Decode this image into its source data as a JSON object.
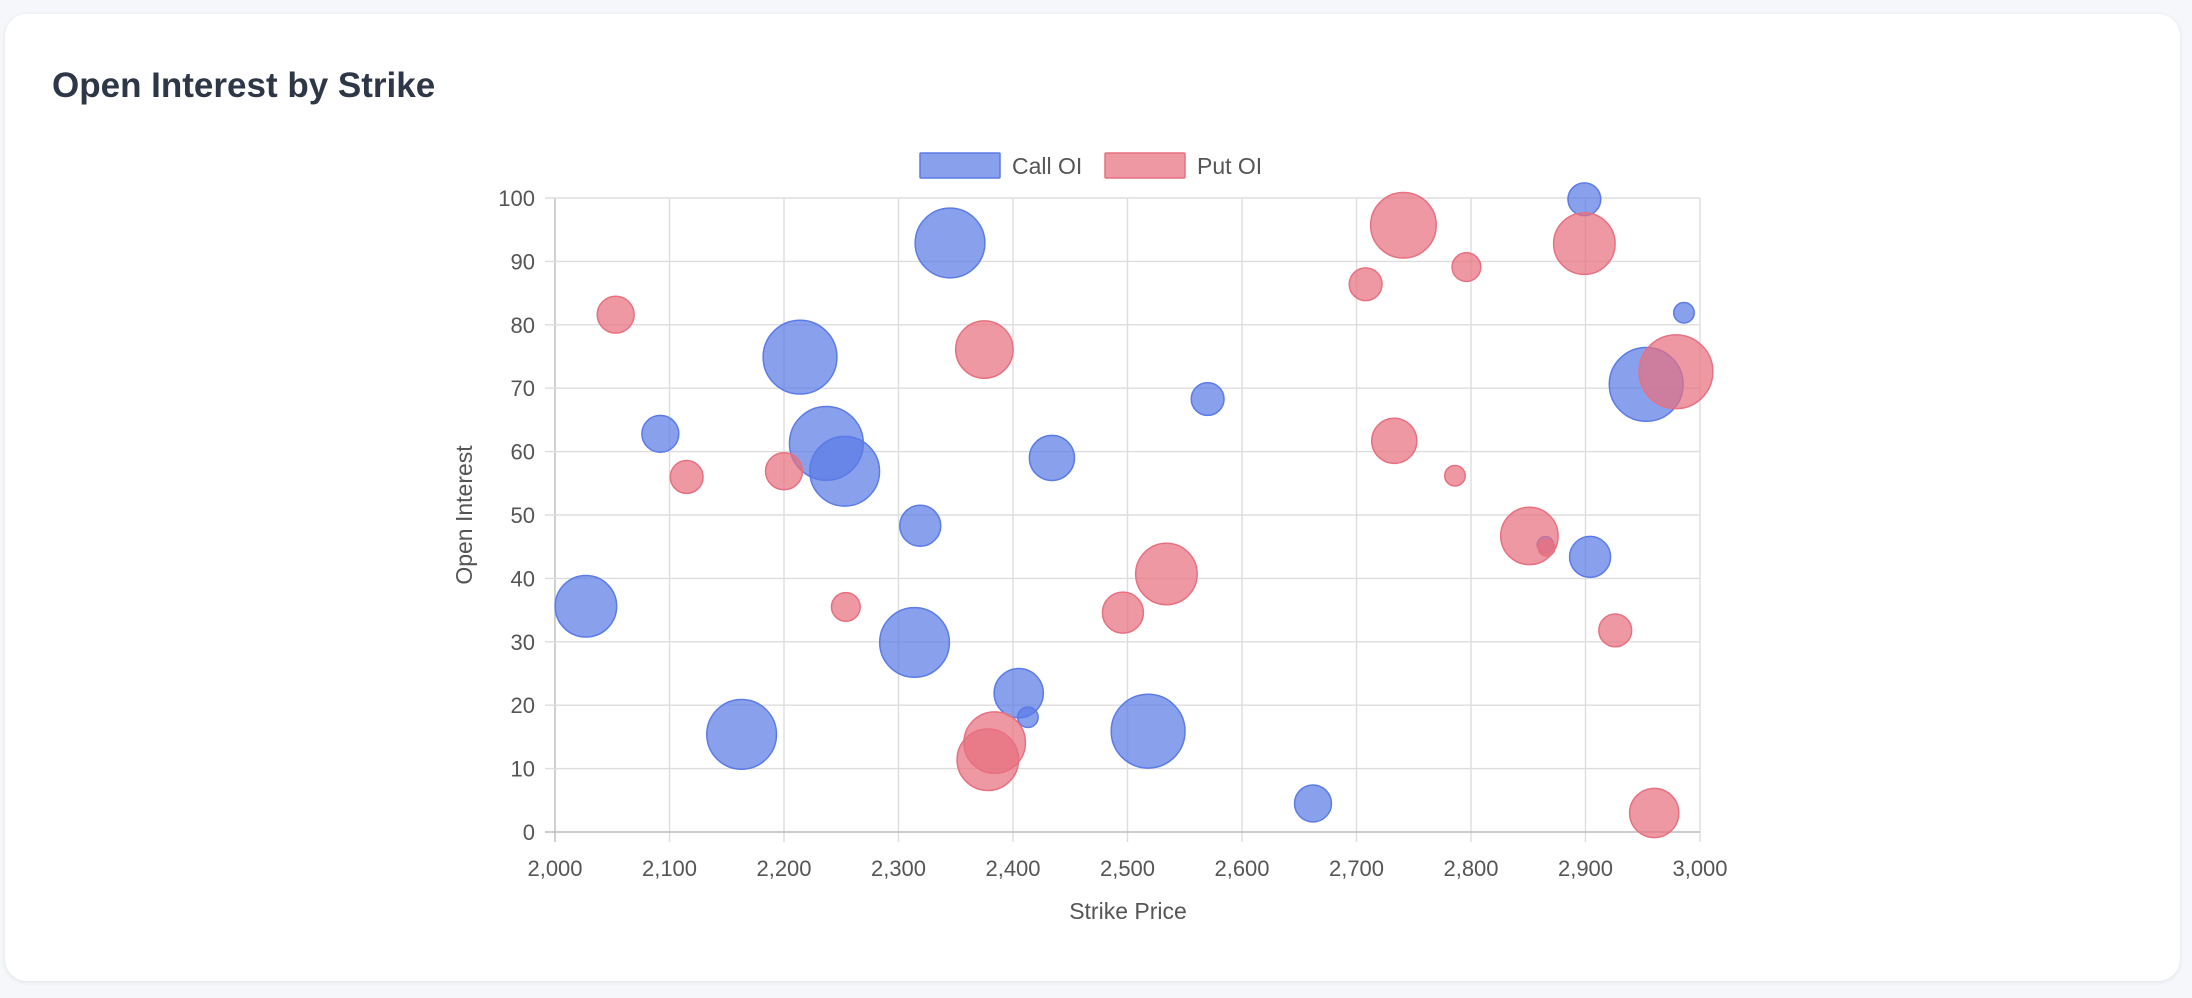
{
  "card": {
    "title": "Open Interest by Strike"
  },
  "colors": {
    "call_fill": "rgba(91, 123, 230, 0.72)",
    "call_stroke": "#5b7be6",
    "put_fill": "rgba(232, 112, 128, 0.72)",
    "put_stroke": "#e87080",
    "grid": "#dddddd",
    "axis": "#bbbbbb"
  },
  "chart_data": {
    "type": "bubble",
    "title": "Open Interest by Strike",
    "xlabel": "Strike Price",
    "ylabel": "Open Interest",
    "xlim": [
      2000,
      3000
    ],
    "ylim": [
      0,
      100
    ],
    "x_ticks": [
      "2,000",
      "2,100",
      "2,200",
      "2,300",
      "2,400",
      "2,500",
      "2,600",
      "2,700",
      "2,800",
      "2,900",
      "3,000"
    ],
    "y_ticks": [
      "0",
      "10",
      "20",
      "30",
      "40",
      "50",
      "60",
      "70",
      "80",
      "90",
      "100"
    ],
    "grid": true,
    "legend_position": "top-center",
    "legend": [
      "Call OI",
      "Put OI"
    ],
    "series": [
      {
        "name": "Call OI",
        "points": [
          {
            "x": 2027,
            "y": 35.6,
            "r": 15
          },
          {
            "x": 2092,
            "y": 62.8,
            "r": 9
          },
          {
            "x": 2163,
            "y": 15.4,
            "r": 17
          },
          {
            "x": 2214,
            "y": 74.9,
            "r": 18
          },
          {
            "x": 2237,
            "y": 61.3,
            "r": 18
          },
          {
            "x": 2253,
            "y": 56.9,
            "r": 17
          },
          {
            "x": 2314,
            "y": 29.9,
            "r": 17
          },
          {
            "x": 2319,
            "y": 48.3,
            "r": 10
          },
          {
            "x": 2345,
            "y": 92.9,
            "r": 17
          },
          {
            "x": 2405,
            "y": 21.9,
            "r": 12
          },
          {
            "x": 2413,
            "y": 18.1,
            "r": 5
          },
          {
            "x": 2434,
            "y": 59.0,
            "r": 11
          },
          {
            "x": 2518,
            "y": 15.9,
            "r": 18
          },
          {
            "x": 2570,
            "y": 68.3,
            "r": 8
          },
          {
            "x": 2662,
            "y": 4.5,
            "r": 9
          },
          {
            "x": 2865,
            "y": 45.3,
            "r": 4
          },
          {
            "x": 2899,
            "y": 99.8,
            "r": 8
          },
          {
            "x": 2904,
            "y": 43.4,
            "r": 10
          },
          {
            "x": 2953,
            "y": 70.6,
            "r": 18
          },
          {
            "x": 2986,
            "y": 81.9,
            "r": 5
          }
        ]
      },
      {
        "name": "Put OI",
        "points": [
          {
            "x": 2053,
            "y": 81.6,
            "r": 9
          },
          {
            "x": 2115,
            "y": 56.0,
            "r": 8
          },
          {
            "x": 2200,
            "y": 56.9,
            "r": 9
          },
          {
            "x": 2254,
            "y": 35.5,
            "r": 7
          },
          {
            "x": 2375,
            "y": 76.1,
            "r": 14
          },
          {
            "x": 2378,
            "y": 11.4,
            "r": 15
          },
          {
            "x": 2384,
            "y": 14.1,
            "r": 15
          },
          {
            "x": 2496,
            "y": 34.6,
            "r": 10
          },
          {
            "x": 2534,
            "y": 40.7,
            "r": 15
          },
          {
            "x": 2708,
            "y": 86.4,
            "r": 8
          },
          {
            "x": 2733,
            "y": 61.7,
            "r": 11
          },
          {
            "x": 2741,
            "y": 95.7,
            "r": 16
          },
          {
            "x": 2786,
            "y": 56.2,
            "r": 5
          },
          {
            "x": 2796,
            "y": 89.1,
            "r": 7
          },
          {
            "x": 2851,
            "y": 46.7,
            "r": 14
          },
          {
            "x": 2866,
            "y": 44.8,
            "r": 4
          },
          {
            "x": 2899,
            "y": 92.8,
            "r": 15
          },
          {
            "x": 2926,
            "y": 31.8,
            "r": 8
          },
          {
            "x": 2960,
            "y": 3.0,
            "r": 12
          },
          {
            "x": 2979,
            "y": 72.6,
            "r": 18
          }
        ]
      }
    ]
  }
}
